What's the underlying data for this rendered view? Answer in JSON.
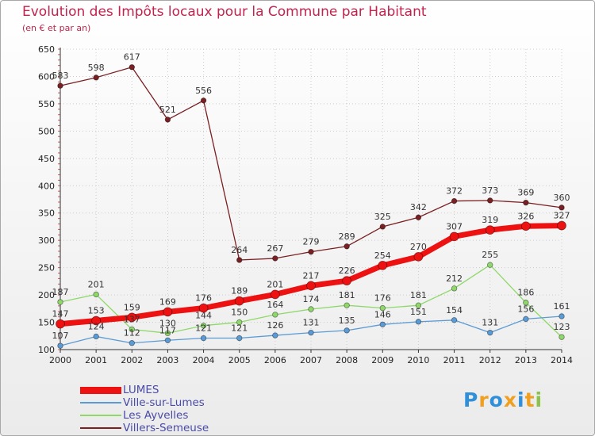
{
  "colors": {
    "title": "#c0244e",
    "legend_text": "#4a4aa8",
    "grid": "#cccccc"
  },
  "logo": {
    "text": "Proxiti",
    "letters": [
      "P",
      "r",
      "o",
      "x",
      "i",
      "t",
      "i"
    ],
    "letter_colors": [
      "#2f8fd8",
      "#f0a020",
      "#2f8fd8",
      "#f0a020",
      "#2f8fd8",
      "#f0a020",
      "#8bc34a"
    ]
  },
  "chart_data": {
    "type": "line",
    "title": "Evolution des Impôts locaux pour la Commune par Habitant",
    "subtitle": "(en € et par an)",
    "xlabel": "",
    "ylabel": "",
    "ylim": [
      100,
      650
    ],
    "yticks": [
      100,
      150,
      200,
      250,
      300,
      350,
      400,
      450,
      500,
      550,
      600,
      650
    ],
    "x": [
      "2000",
      "2001",
      "2002",
      "2003",
      "2004",
      "2005",
      "2006",
      "2007",
      "2008",
      "2009",
      "2010",
      "2011",
      "2012",
      "2013",
      "2014"
    ],
    "legend_position": "bottom-left",
    "series": [
      {
        "name": "Villers-Semeuse",
        "color": "#7a1f22",
        "values": [
          583,
          598,
          617,
          521,
          556,
          264,
          267,
          279,
          289,
          325,
          342,
          372,
          373,
          369,
          360
        ]
      },
      {
        "name": "Les Ayvelles",
        "color": "#8ed86a",
        "values": [
          187,
          201,
          137,
          130,
          144,
          150,
          164,
          174,
          181,
          176,
          181,
          212,
          255,
          186,
          123
        ]
      },
      {
        "name": "Ville-sur-Lumes",
        "color": "#5b9bd5",
        "values": [
          107,
          124,
          112,
          117,
          121,
          121,
          126,
          131,
          135,
          146,
          151,
          154,
          131,
          156,
          161
        ]
      },
      {
        "name": "LUMES",
        "color": "#ee1111",
        "values": [
          147,
          153,
          159,
          169,
          176,
          189,
          201,
          217,
          226,
          254,
          270,
          307,
          319,
          326,
          327
        ]
      }
    ],
    "value_labels": [
      {
        "series": "Villers-Semeuse",
        "labels": [
          "583",
          "598",
          "617",
          "521",
          "556",
          "264",
          "267",
          "279",
          "289",
          "325",
          "342",
          "372",
          "373",
          "369",
          "360"
        ]
      },
      {
        "series": "Les Ayvelles",
        "labels": [
          "187",
          "201",
          "137",
          "130",
          "144",
          "150",
          "164",
          "174",
          "181",
          "176",
          "181",
          "212",
          "255",
          "186",
          "123"
        ]
      },
      {
        "series": "Ville-sur-Lumes",
        "labels": [
          "107",
          "124",
          "112",
          "117",
          "121",
          "121",
          "126",
          "131",
          "135",
          "146",
          "151",
          "154",
          "131",
          "156",
          "161"
        ]
      },
      {
        "series": "LUMES",
        "labels": [
          "147",
          "153",
          "159",
          "169",
          "176",
          "189",
          "201",
          "217",
          "226",
          "254",
          "270",
          "307",
          "319",
          "326",
          "327"
        ]
      }
    ]
  },
  "legend": [
    {
      "label": "LUMES",
      "color": "#ee1111"
    },
    {
      "label": "Ville-sur-Lumes",
      "color": "#5b9bd5"
    },
    {
      "label": "Les Ayvelles",
      "color": "#8ed86a"
    },
    {
      "label": "Villers-Semeuse",
      "color": "#7a1f22"
    }
  ]
}
